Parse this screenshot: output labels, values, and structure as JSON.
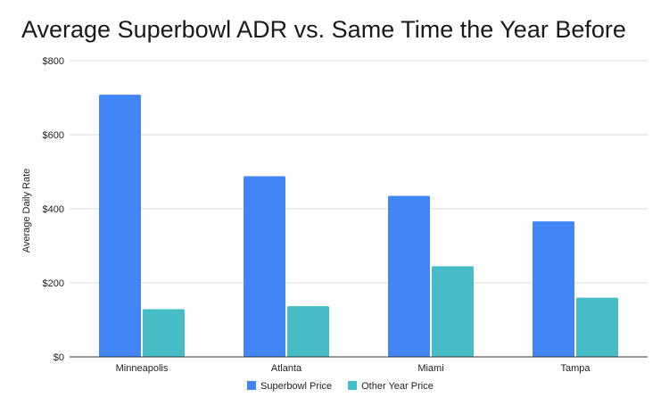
{
  "chart_data": {
    "type": "bar",
    "title": "Average Superbowl ADR vs. Same Time the Year Before",
    "xlabel": "",
    "ylabel": "Average Daily Rate",
    "categories": [
      "Minneapolis",
      "Atlanta",
      "Miami",
      "Tampa"
    ],
    "series": [
      {
        "name": "Superbowl Price",
        "values": [
          708,
          488,
          435,
          366
        ],
        "color": "#4285f4"
      },
      {
        "name": "Other Year Price",
        "values": [
          129,
          137,
          245,
          160
        ],
        "color": "#46bdc6"
      }
    ],
    "ylim": [
      0,
      800
    ],
    "yticks": [
      0,
      200,
      400,
      600,
      800
    ],
    "ytick_labels": [
      "$0",
      "$200",
      "$400",
      "$600",
      "$800"
    ],
    "grid": true,
    "legend": "bottom"
  }
}
